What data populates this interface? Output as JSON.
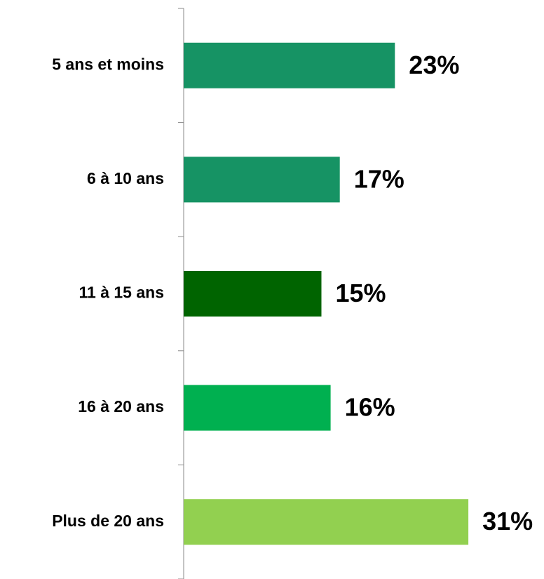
{
  "chart_data": {
    "type": "bar",
    "orientation": "horizontal",
    "categories": [
      "5 ans et moins",
      "6 à 10 ans",
      "11 à 15 ans",
      "16 à 20 ans",
      "Plus de 20 ans"
    ],
    "values": [
      23,
      17,
      15,
      16,
      31
    ],
    "value_labels": [
      "23%",
      "17%",
      "15%",
      "16%",
      "31%"
    ],
    "colors": [
      "#169364",
      "#169364",
      "#006400",
      "#00b050",
      "#92d050"
    ]
  }
}
